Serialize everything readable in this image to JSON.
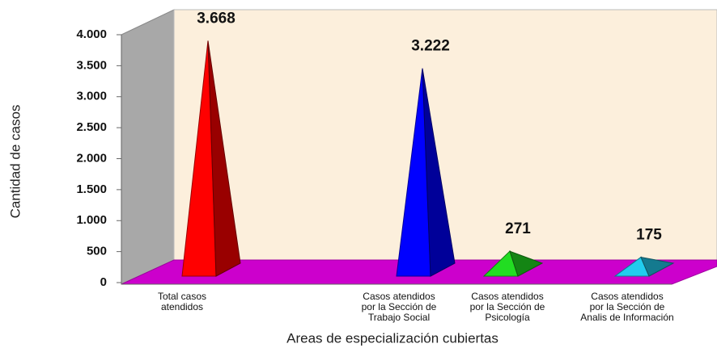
{
  "chart_data": {
    "type": "pyramid",
    "y_label": "Cantidad de casos",
    "x_label": "Areas de especialización cubiertas",
    "categories": [
      "Total casos\natendidos",
      "Casos atendidos\npor la Sección de\nTrabajo Social",
      "Casos atendidos\npor la Sección de\nPsicología",
      "Casos atendidos\npor la Sección de\nAnalis de Información"
    ],
    "values": [
      3668,
      3222,
      271,
      175
    ],
    "value_labels": [
      "3.668",
      "3.222",
      "271",
      "175"
    ],
    "colors": [
      "#ff0000",
      "#0000ff",
      "#22dd22",
      "#22ccee"
    ],
    "ylim": [
      0,
      4000
    ],
    "yticks": [
      0,
      500,
      {
        "value": 1000,
        "label": "1.000"
      },
      {
        "value": 1500,
        "label": "1.500"
      },
      {
        "value": 2000,
        "label": "2.000"
      },
      {
        "value": 2500,
        "label": "2.500"
      },
      {
        "value": 3000,
        "label": "3.000"
      },
      {
        "value": 3500,
        "label": "3.500"
      },
      {
        "value": 4000,
        "label": "4.000"
      }
    ]
  }
}
